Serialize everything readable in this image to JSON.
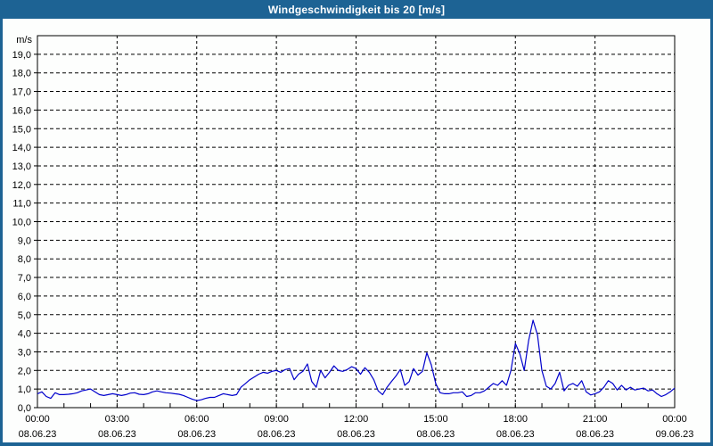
{
  "window": {
    "title": "Windgeschwindigkeit bis 20 [m/s]"
  },
  "colors": {
    "frame": "#1d6394",
    "background": "#fdfefd",
    "plot_background": "#fdfefd",
    "grid": "#000000",
    "axis": "#000000",
    "text": "#000000",
    "title_text": "#ffffff",
    "line": "#0000cc"
  },
  "chart_data": {
    "type": "line",
    "title": "Windgeschwindigkeit bis 20 [m/s]",
    "unit_label": "m/s",
    "xlabel": "",
    "ylabel": "m/s",
    "ylim": [
      0,
      20
    ],
    "y_tick_step": 1.0,
    "y_tick_labels": [
      "0,0",
      "1,0",
      "2,0",
      "3,0",
      "4,0",
      "5,0",
      "6,0",
      "7,0",
      "8,0",
      "9,0",
      "10,0",
      "11,0",
      "12,0",
      "13,0",
      "14,0",
      "15,0",
      "16,0",
      "17,0",
      "18,0",
      "19,0"
    ],
    "x_range_hours": [
      0,
      24
    ],
    "x_minor_tick_interval_hours": 1,
    "x_major_ticks": [
      {
        "hour": 0,
        "time": "00:00",
        "date": "08.06.23"
      },
      {
        "hour": 3,
        "time": "03:00",
        "date": "08.06.23"
      },
      {
        "hour": 6,
        "time": "06:00",
        "date": "08.06.23"
      },
      {
        "hour": 9,
        "time": "09:00",
        "date": "08.06.23"
      },
      {
        "hour": 12,
        "time": "12:00",
        "date": "08.06.23"
      },
      {
        "hour": 15,
        "time": "15:00",
        "date": "08.06.23"
      },
      {
        "hour": 18,
        "time": "18:00",
        "date": "08.06.23"
      },
      {
        "hour": 21,
        "time": "21:00",
        "date": "08.06.23"
      },
      {
        "hour": 24,
        "time": "00:00",
        "date": "09.06.23"
      }
    ],
    "grid_style": "dashed",
    "legend": "none",
    "series": [
      {
        "name": "Windgeschwindigkeit",
        "color": "#0000cc",
        "start_time": "00:00",
        "sample_interval_minutes": 10,
        "values": [
          0.75,
          0.85,
          0.6,
          0.5,
          0.8,
          0.7,
          0.7,
          0.72,
          0.75,
          0.8,
          0.9,
          0.95,
          1.0,
          0.85,
          0.7,
          0.65,
          0.7,
          0.75,
          0.7,
          0.65,
          0.7,
          0.78,
          0.8,
          0.72,
          0.7,
          0.75,
          0.85,
          0.9,
          0.85,
          0.8,
          0.78,
          0.75,
          0.72,
          0.65,
          0.55,
          0.45,
          0.38,
          0.42,
          0.5,
          0.55,
          0.55,
          0.65,
          0.75,
          0.7,
          0.65,
          0.7,
          1.1,
          1.3,
          1.5,
          1.65,
          1.8,
          1.9,
          1.85,
          1.95,
          2.0,
          1.9,
          2.05,
          2.1,
          1.5,
          1.8,
          1.95,
          2.35,
          1.4,
          1.1,
          2.0,
          1.6,
          1.9,
          2.25,
          2.0,
          1.95,
          2.05,
          2.2,
          2.1,
          1.8,
          2.15,
          1.9,
          1.5,
          0.9,
          0.7,
          1.1,
          1.4,
          1.7,
          2.05,
          1.2,
          1.4,
          2.1,
          1.75,
          1.95,
          2.95,
          2.3,
          1.3,
          0.8,
          0.75,
          0.75,
          0.8,
          0.8,
          0.85,
          0.6,
          0.65,
          0.8,
          0.8,
          0.9,
          1.1,
          1.3,
          1.2,
          1.45,
          1.2,
          2.0,
          3.45,
          2.9,
          2.0,
          3.6,
          4.7,
          3.9,
          2.0,
          1.15,
          1.0,
          1.3,
          1.9,
          0.9,
          1.2,
          1.3,
          1.15,
          1.45,
          0.85,
          0.68,
          0.75,
          0.85,
          1.1,
          1.45,
          1.3,
          0.95,
          1.2,
          0.95,
          1.1,
          0.95,
          1.0,
          1.05,
          0.9,
          0.95,
          0.75,
          0.6,
          0.7,
          0.85,
          1.05
        ]
      }
    ]
  }
}
